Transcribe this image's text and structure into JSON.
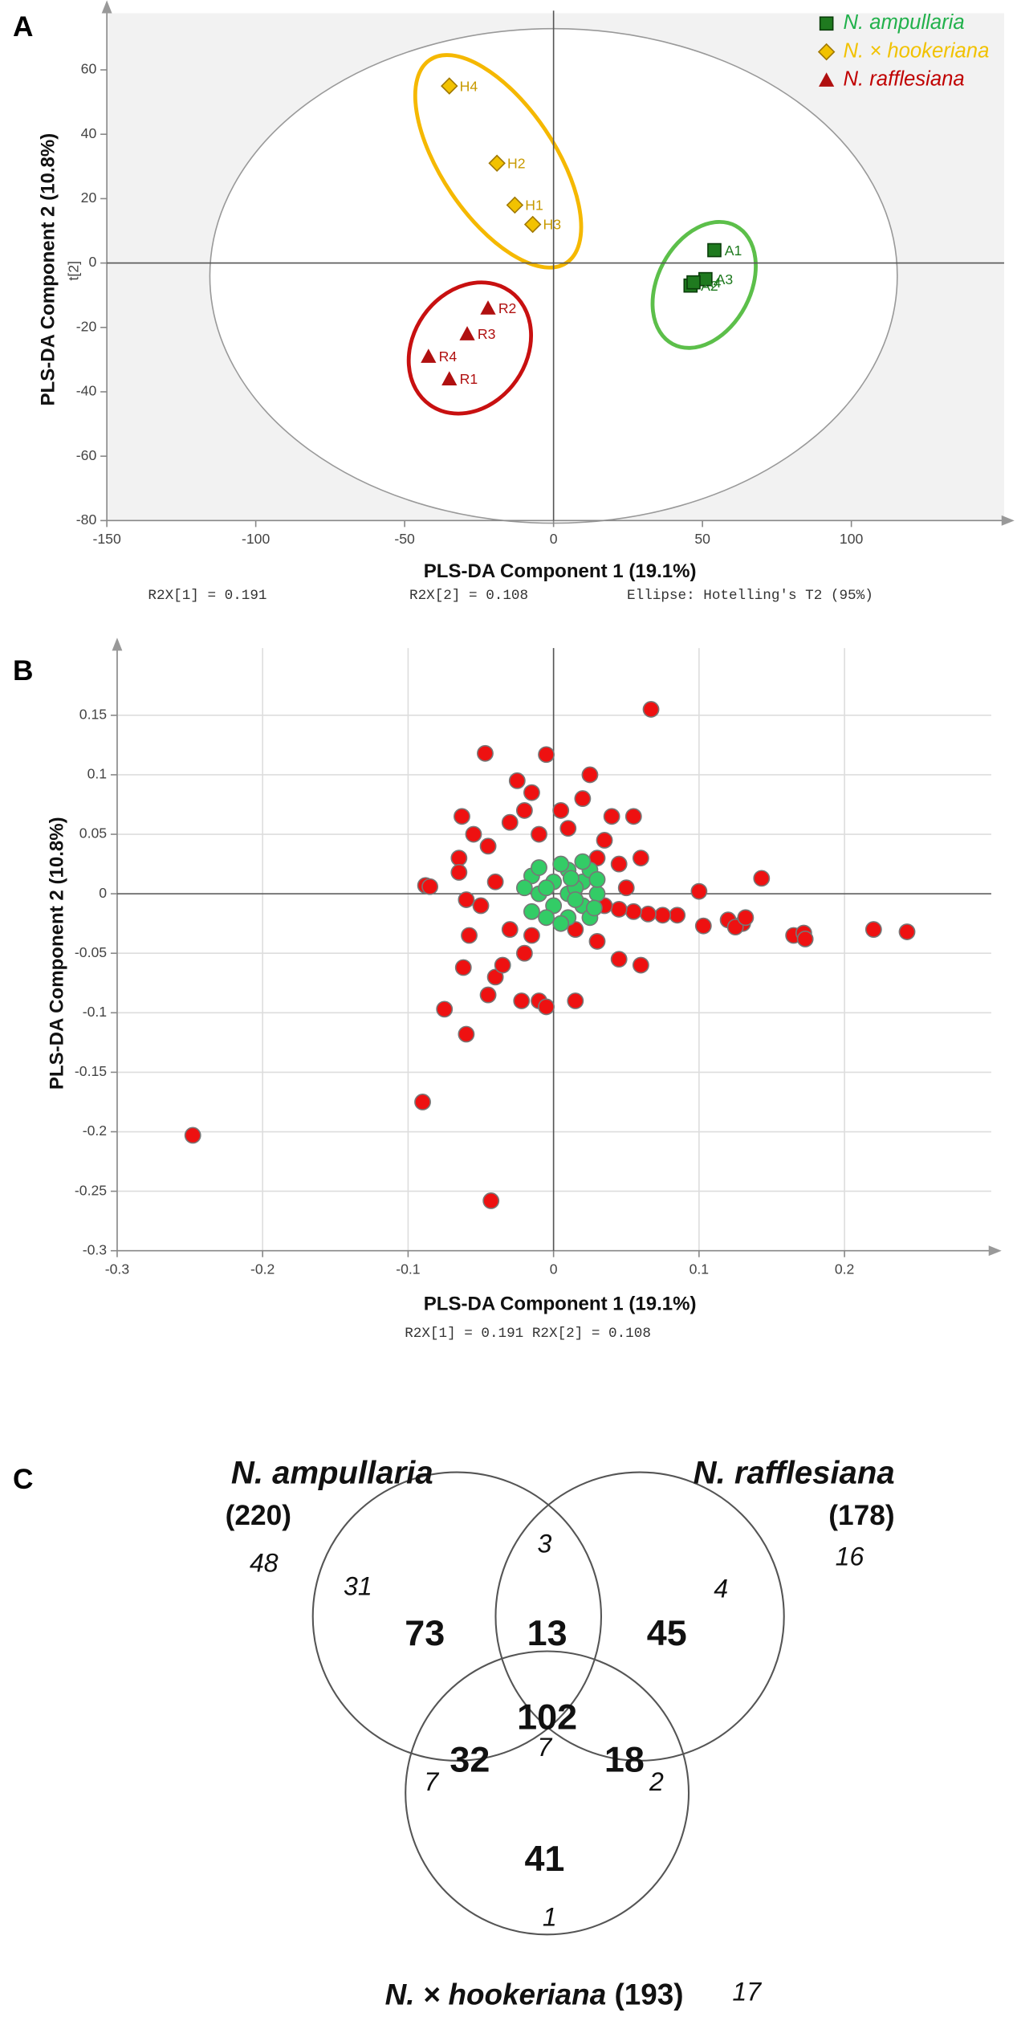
{
  "chart_data": [
    {
      "type": "scatter",
      "panel": "A",
      "xlabel": "PLS-DA Component 1 (19.1%)",
      "ylabel": "PLS-DA Component 2  (10.8%)",
      "ysublabel": "t[2]",
      "footer": [
        "R2X[1] = 0.191",
        "R2X[2] = 0.108",
        "Ellipse: Hotelling's T2 (95%)"
      ],
      "xlim": [
        -150,
        150
      ],
      "ylim": [
        -80,
        76
      ],
      "xticks": [
        -150,
        -100,
        -50,
        0,
        50,
        100
      ],
      "yticks": [
        -80,
        -60,
        -40,
        -20,
        0,
        20,
        40,
        60
      ],
      "grid": false,
      "legend": "top-right",
      "series": [
        {
          "name": "N. ampullaria",
          "color": "#1f7a1f",
          "text_color": "#22b14c",
          "marker": "square",
          "labels": [
            "A1",
            "A2",
            "A3",
            "A4"
          ],
          "x": [
            54,
            46,
            51,
            47
          ],
          "y": [
            4,
            -7,
            -5,
            -6
          ]
        },
        {
          "name": "N. × hookeriana",
          "color": "#f2c200",
          "text_color": "#f2c200",
          "marker": "diamond",
          "labels": [
            "H1",
            "H2",
            "H3",
            "H4"
          ],
          "x": [
            -13,
            -19,
            -7,
            -35
          ],
          "y": [
            18,
            31,
            12,
            55
          ]
        },
        {
          "name": "N. rafflesiana",
          "color": "#b01010",
          "text_color": "#c00000",
          "marker": "triangle",
          "labels": [
            "R1",
            "R2",
            "R3",
            "R4"
          ],
          "x": [
            -35,
            -22,
            -29,
            -42
          ],
          "y": [
            -36,
            -14,
            -22,
            -29
          ]
        }
      ]
    },
    {
      "type": "scatter",
      "panel": "B",
      "xlabel": "PLS-DA Component 1 (19.1%)",
      "ylabel": "PLS-DA Component 2  (10.8%)",
      "footer": [
        "R2X[1] = 0.191 R2X[2] = 0.108"
      ],
      "xlim": [
        -0.3,
        0.3
      ],
      "ylim": [
        -0.3,
        0.2
      ],
      "xticks": [
        -0.3,
        -0.2,
        -0.1,
        0,
        0.1,
        0.2
      ],
      "yticks": [
        -0.3,
        -0.25,
        -0.2,
        -0.15,
        -0.1,
        -0.05,
        0,
        0.05,
        0.1,
        0.15
      ],
      "grid": true,
      "series": [
        {
          "color": "#ee1111",
          "marker": "circle",
          "x": [
            0.067,
            -0.047,
            -0.005,
            0.025,
            -0.025,
            -0.015,
            0.02,
            -0.063,
            0.04,
            0.055,
            0.1,
            0.143,
            0.165,
            0.172,
            0.173,
            0.22,
            0.243,
            0.13,
            0.12,
            0.125,
            0.132,
            0.103,
            0.085,
            0.075,
            0.065,
            0.055,
            0.045,
            0.035,
            0.06,
            0.035,
            -0.088,
            -0.085,
            -0.065,
            -0.065,
            -0.06,
            -0.062,
            -0.058,
            -0.075,
            -0.06,
            -0.09,
            -0.248,
            -0.043,
            -0.045,
            -0.04,
            -0.035,
            -0.02,
            -0.01,
            -0.022,
            -0.005,
            0.015,
            0.045,
            0.06,
            0.03,
            -0.03,
            -0.05,
            -0.045,
            -0.03,
            -0.01,
            0.01,
            0.03,
            0.015,
            -0.015,
            0.05,
            -0.04,
            -0.055,
            0.045,
            -0.02,
            0.005
          ],
          "y": [
            0.155,
            0.118,
            0.117,
            0.1,
            0.095,
            0.085,
            0.08,
            0.065,
            0.065,
            0.065,
            0.002,
            0.013,
            -0.035,
            -0.033,
            -0.038,
            -0.03,
            -0.032,
            -0.025,
            -0.022,
            -0.028,
            -0.02,
            -0.027,
            -0.018,
            -0.018,
            -0.017,
            -0.015,
            -0.013,
            -0.01,
            0.03,
            0.045,
            0.007,
            0.006,
            0.03,
            0.018,
            -0.005,
            -0.062,
            -0.035,
            -0.097,
            -0.118,
            -0.175,
            -0.203,
            -0.258,
            -0.085,
            -0.07,
            -0.06,
            -0.05,
            -0.09,
            -0.09,
            -0.095,
            -0.09,
            -0.055,
            -0.06,
            -0.04,
            -0.03,
            -0.01,
            0.04,
            0.06,
            0.05,
            0.055,
            0.03,
            -0.03,
            -0.035,
            0.005,
            0.01,
            0.05,
            0.025,
            0.07,
            0.07
          ]
        },
        {
          "color": "#33cc66",
          "marker": "circle",
          "x": [
            0.01,
            0.0,
            0.02,
            -0.01,
            0.0,
            0.02,
            0.01,
            0.01,
            -0.015,
            -0.015,
            0.03,
            0.025,
            0.025,
            -0.02,
            0.005,
            0.005,
            0.015,
            -0.005,
            0.015,
            0.03,
            -0.01,
            0.02,
            -0.005,
            0.028,
            0.012
          ],
          "y": [
            0,
            0.01,
            0.01,
            0,
            -0.01,
            -0.01,
            0.02,
            -0.02,
            0.015,
            -0.015,
            0,
            0.02,
            -0.02,
            0.005,
            0.025,
            -0.025,
            0.005,
            0.005,
            -0.005,
            0.012,
            0.022,
            0.027,
            -0.02,
            -0.012,
            0.013
          ]
        }
      ]
    }
  ],
  "venn": {
    "panel": "C",
    "sets": [
      {
        "name": "N. ampullaria",
        "count": "(220)",
        "outside": 48
      },
      {
        "name": "N. rafflesiana",
        "count": "(178)",
        "outside": 16
      },
      {
        "name": "N. × hookeriana",
        "count": "(193)",
        "outside": 17
      }
    ],
    "regions": [
      {
        "region": "ampullaria only",
        "bold": 73,
        "italic": 31
      },
      {
        "region": "ampullaria and rafflesiana",
        "bold": 13,
        "italic": 3
      },
      {
        "region": "rafflesiana only",
        "bold": 45,
        "italic": 4
      },
      {
        "region": "all three",
        "bold": 102,
        "italic": 7
      },
      {
        "region": "ampullaria and hookeriana",
        "bold": 32,
        "italic": 7
      },
      {
        "region": "rafflesiana and hookeriana",
        "bold": 18,
        "italic": 2
      },
      {
        "region": "hookeriana only",
        "bold": 41,
        "italic": 1
      }
    ]
  }
}
